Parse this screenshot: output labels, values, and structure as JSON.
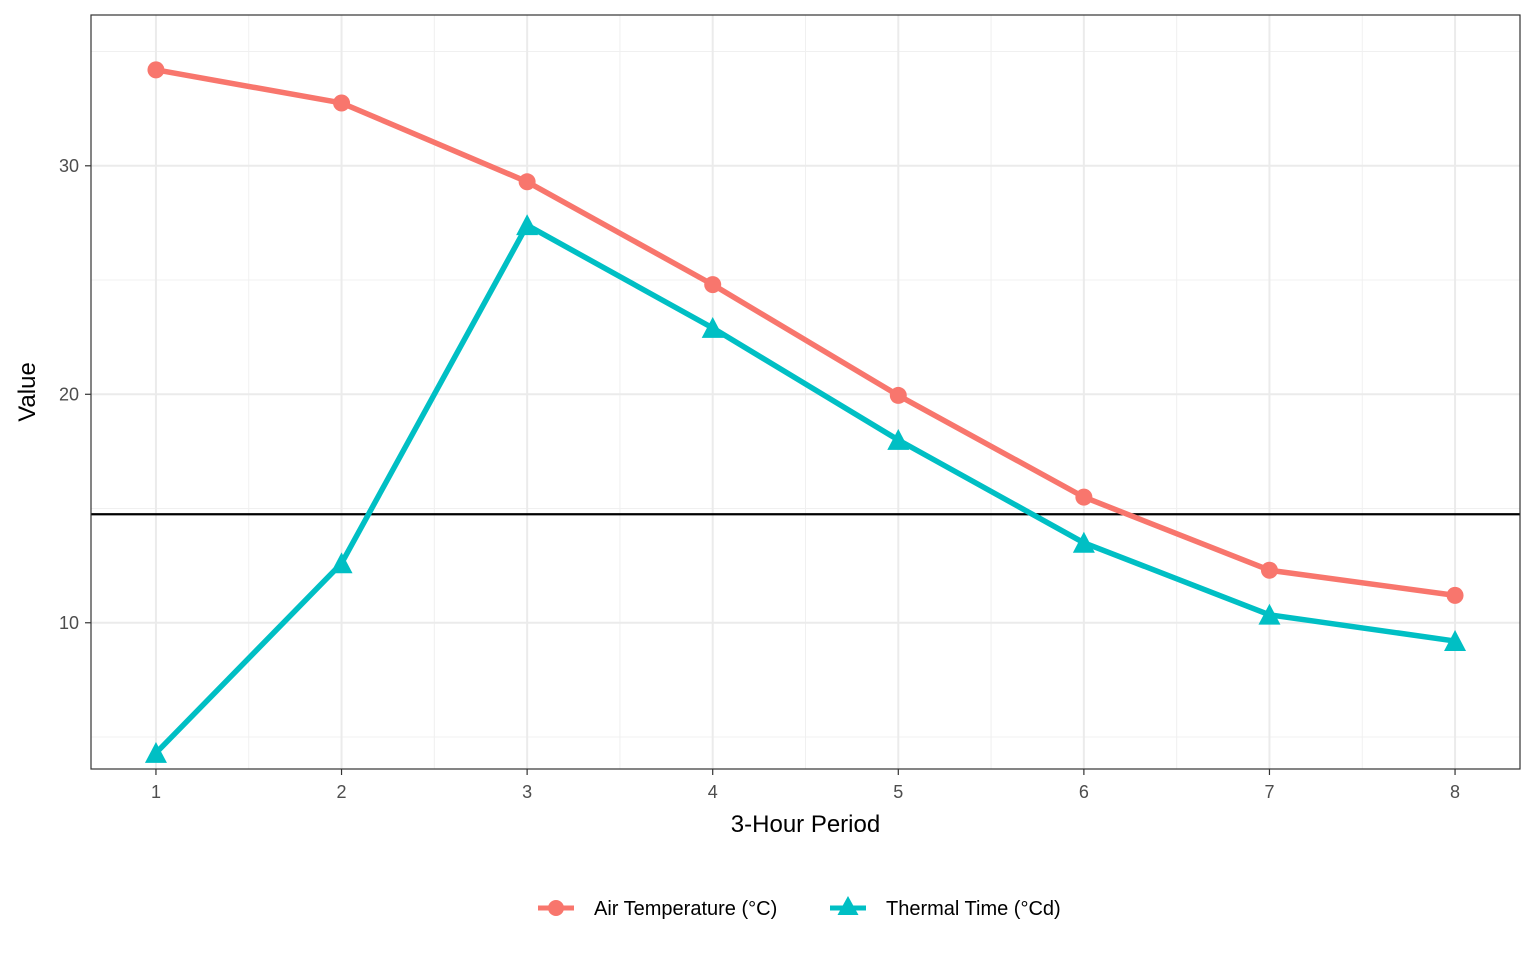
{
  "chart_data": {
    "type": "line",
    "title": "",
    "xlabel": "3-Hour Period",
    "ylabel": "Value",
    "x": [
      1,
      2,
      3,
      4,
      5,
      6,
      7,
      8
    ],
    "xlim": [
      0.65,
      8.35
    ],
    "ylim": [
      3.6,
      36.6
    ],
    "x_ticks": [
      "1",
      "2",
      "3",
      "4",
      "5",
      "6",
      "7",
      "8"
    ],
    "y_ticks": [
      "10",
      "20",
      "30"
    ],
    "y_tick_values": [
      10,
      20,
      30
    ],
    "y_minor_values": [
      5,
      15,
      25,
      35
    ],
    "x_minor_values": [
      1.5,
      2.5,
      3.5,
      4.5,
      5.5,
      6.5,
      7.5
    ],
    "hline": 14.75,
    "grid": true,
    "legend_position": "bottom",
    "series": [
      {
        "name": "Air Temperature (°C)",
        "color": "#F8766D",
        "marker": "circle",
        "values": [
          34.2,
          32.75,
          29.3,
          24.8,
          19.95,
          15.5,
          12.3,
          11.2
        ]
      },
      {
        "name": "Thermal Time (°Cd)",
        "color": "#00BFC4",
        "marker": "triangle",
        "values": [
          4.3,
          12.6,
          27.4,
          22.9,
          18.0,
          13.5,
          10.35,
          9.2
        ]
      }
    ]
  }
}
